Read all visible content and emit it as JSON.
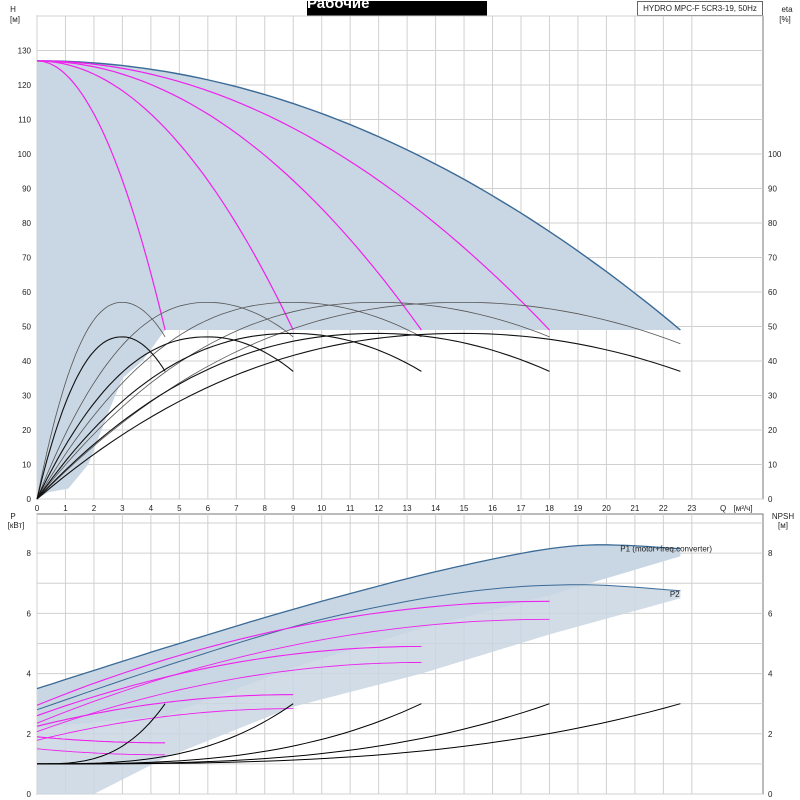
{
  "title": "Рабочие характеристики",
  "model": "HYDRO MPC-F 5CR3-19, 50Hz",
  "colors": {
    "envelope_fill": "#c9d6e3",
    "envelope_edge": "#3a6a96",
    "speed_curve": "#ee22ee",
    "efficiency_curve": "#000000",
    "p1_label": "#2a5b8f"
  },
  "chart_data": [
    {
      "type": "line",
      "name": "head",
      "axes": {
        "left_label": "H",
        "left_unit": "[м]",
        "right_label": "eta",
        "right_unit": "[%]",
        "x_label": "Q",
        "x_unit": "[м³/ч]"
      },
      "xlim": [
        0,
        25.5
      ],
      "ylim": [
        0,
        140
      ],
      "x_ticks": [
        "0",
        "1",
        "2",
        "3",
        "4",
        "5",
        "6",
        "7",
        "8",
        "9",
        "10",
        "11",
        "12",
        "13",
        "14",
        "15",
        "16",
        "17",
        "18",
        "19",
        "20",
        "21",
        "22",
        "23"
      ],
      "y_ticks": [
        "0",
        "10",
        "20",
        "30",
        "40",
        "50",
        "60",
        "70",
        "80",
        "90",
        "100",
        "110",
        "120",
        "130"
      ],
      "eta_ticks": [
        "0",
        "10",
        "20",
        "30",
        "40",
        "50",
        "60",
        "70",
        "80",
        "90",
        "100"
      ],
      "grid": true,
      "shutoff_head": 127,
      "min_head": 49,
      "pumps_max_flow": [
        4.5,
        9.0,
        13.5,
        18.0,
        22.6
      ],
      "envelope_head_at_max_flow": [
        49,
        49,
        49,
        49,
        49
      ],
      "efficiency_peak": [
        {
          "flow": 3.0,
          "eta": 57,
          "end_flow": 4.5,
          "end_eta": 47
        },
        {
          "flow": 6.0,
          "eta": 57,
          "end_flow": 9.0,
          "end_eta": 47
        },
        {
          "flow": 9.0,
          "eta": 57,
          "end_flow": 13.5,
          "end_eta": 47
        },
        {
          "flow": 12.0,
          "eta": 57,
          "end_flow": 18.0,
          "end_eta": 47
        },
        {
          "flow": 15.0,
          "eta": 57,
          "end_flow": 22.6,
          "end_eta": 45
        }
      ],
      "efficiency_peak_low": [
        {
          "flow": 3.0,
          "eta": 47,
          "end_flow": 4.5,
          "end_eta": 37
        },
        {
          "flow": 6.0,
          "eta": 47,
          "end_flow": 9.0,
          "end_eta": 37
        },
        {
          "flow": 9.0,
          "eta": 48,
          "end_flow": 13.5,
          "end_eta": 37
        },
        {
          "flow": 12.0,
          "eta": 48,
          "end_flow": 18.0,
          "end_eta": 37
        },
        {
          "flow": 15.0,
          "eta": 48,
          "end_flow": 22.6,
          "end_eta": 37
        }
      ]
    },
    {
      "type": "line",
      "name": "power",
      "axes": {
        "left_label": "P",
        "left_unit": "[кВт]",
        "right_label": "NPSH",
        "right_unit": "[м]"
      },
      "xlim": [
        0,
        25.5
      ],
      "ylim": [
        0,
        9.3
      ],
      "y_ticks": [
        "0",
        "2",
        "4",
        "6",
        "8"
      ],
      "npsh_ticks": [
        "0",
        "2",
        "4",
        "6",
        "8"
      ],
      "grid": true,
      "series": [
        {
          "name": "P1 (motor+freq.converter)",
          "x": [
            0,
            5,
            10,
            15,
            19,
            22.6
          ],
          "y": [
            3.5,
            5.0,
            6.4,
            7.6,
            8.25,
            8.15
          ]
        },
        {
          "name": "P2",
          "x": [
            0,
            5,
            10,
            15,
            19,
            22.6
          ],
          "y": [
            2.8,
            4.4,
            5.8,
            6.7,
            6.95,
            6.75
          ]
        }
      ],
      "npsh_curves_end": [
        {
          "flow": 4.5,
          "npsh": 3.0
        },
        {
          "flow": 9.0,
          "npsh": 3.0
        },
        {
          "flow": 13.5,
          "npsh": 3.0
        },
        {
          "flow": 18.0,
          "npsh": 3.0
        },
        {
          "flow": 22.6,
          "npsh": 3.0
        }
      ],
      "npsh_base": 1.0,
      "speed_power_end": [
        {
          "flow": 4.5,
          "p": 1.7
        },
        {
          "flow": 9.0,
          "p": 3.3
        },
        {
          "flow": 13.5,
          "p": 4.9
        },
        {
          "flow": 18.0,
          "p": 6.4
        }
      ]
    }
  ]
}
